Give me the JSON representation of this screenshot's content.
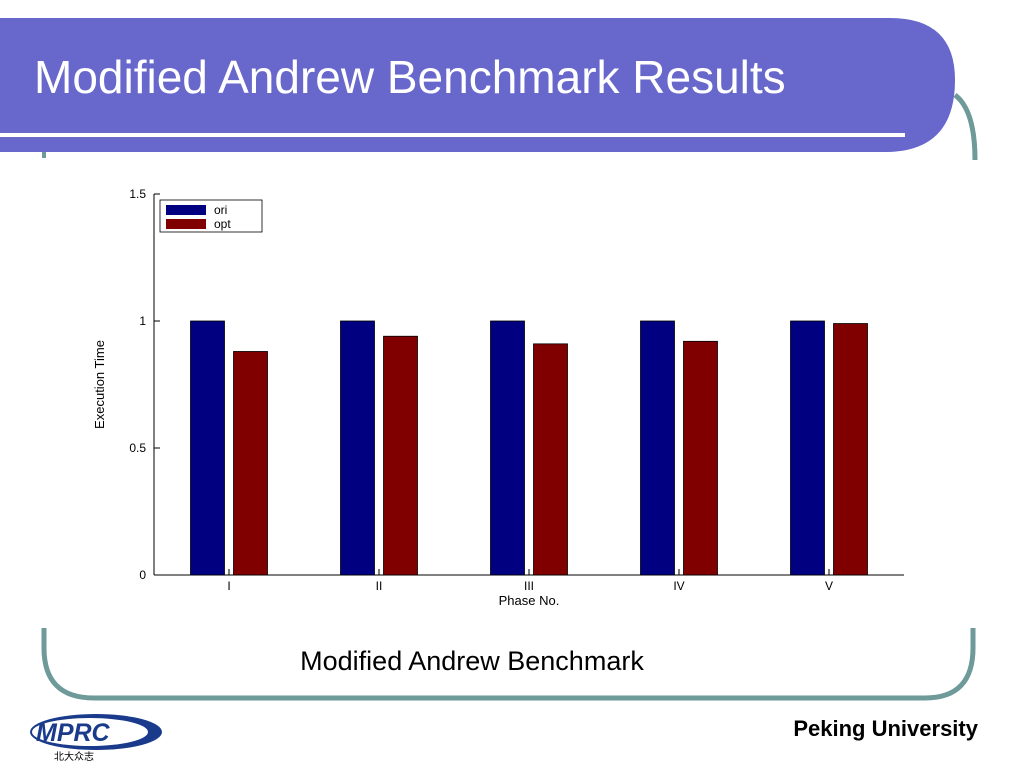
{
  "slide": {
    "title": "Modified Andrew Benchmark Results",
    "caption": "Modified Andrew Benchmark",
    "footer": "Peking University",
    "logo": {
      "text": "MPRC",
      "subtext": "北大众志"
    }
  },
  "colors": {
    "title_bar": "#6767cc",
    "frame_line": "#6e9a9a",
    "series_ori": "#000080",
    "series_opt": "#800000"
  },
  "chart_data": {
    "type": "bar",
    "title": "",
    "xlabel": "Phase No.",
    "ylabel": "Execution Time",
    "ylim": [
      0,
      1.5
    ],
    "yticks": [
      0,
      0.5,
      1,
      1.5
    ],
    "ytick_labels": [
      "0",
      "0.5",
      "1",
      "1.5"
    ],
    "categories": [
      "I",
      "II",
      "III",
      "IV",
      "V"
    ],
    "series": [
      {
        "name": "ori",
        "values": [
          1.0,
          1.0,
          1.0,
          1.0,
          1.0
        ]
      },
      {
        "name": "opt",
        "values": [
          0.88,
          0.94,
          0.91,
          0.92,
          0.99
        ]
      }
    ],
    "legend": "top-left",
    "grid": false
  }
}
